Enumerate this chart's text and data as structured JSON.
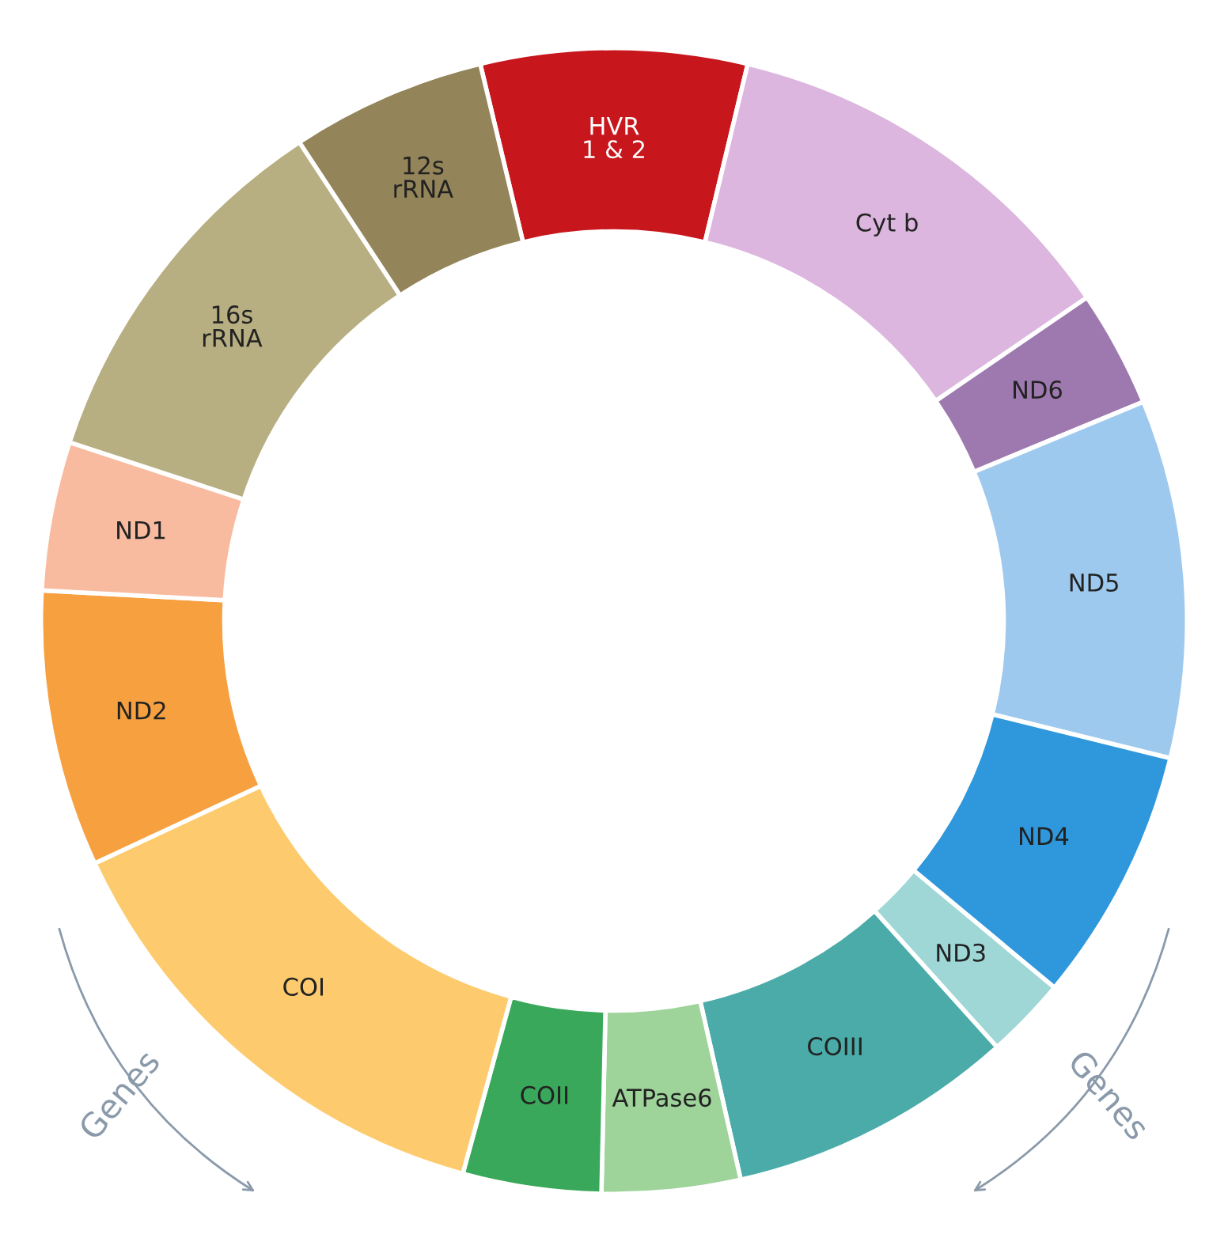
{
  "chart_data": {
    "type": "donut",
    "categories": [
      "HVR\n1 & 2",
      "Cyt b",
      "ND6",
      "ND5",
      "ND4",
      "ND3",
      "COIII",
      "ATPase6",
      "COII",
      "COI",
      "ND2",
      "ND1",
      "16s\nrRNA",
      "12s\nrRNA"
    ],
    "values": [
      7.5,
      11.7,
      3.3,
      10.1,
      7.2,
      2.3,
      8.1,
      3.9,
      3.9,
      13.8,
      7.8,
      4.2,
      10.7,
      5.5
    ],
    "colors": [
      "#c8161d",
      "#dcb6de",
      "#9e79b0",
      "#9ec9ee",
      "#2f97db",
      "#9fd6d6",
      "#4aaba8",
      "#9ed39a",
      "#3aa85a",
      "#fdcb6e",
      "#f7a040",
      "#f8bba0",
      "#b7ae82",
      "#938459"
    ],
    "annotations": [
      "Genes",
      "Genes"
    ]
  }
}
